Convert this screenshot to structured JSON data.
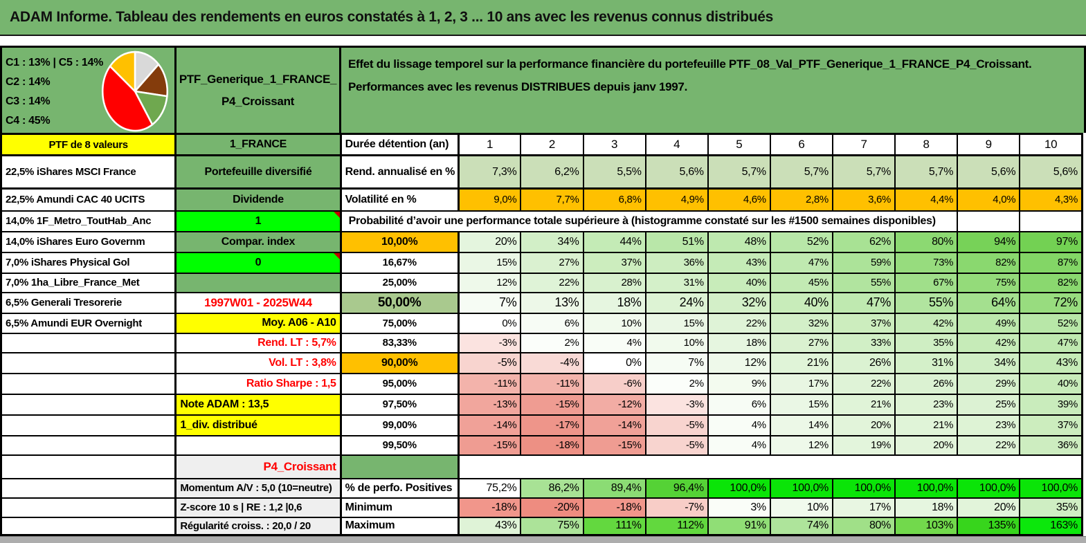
{
  "header": {
    "title": "ADAM Informe. Tableau des rendements en euros constatés à 1, 2, 3 ... 10 ans avec les revenus connus distribués"
  },
  "top": {
    "pie_legend_lines": [
      "C1 : 13% | C5 : 14%",
      "C2 : 14%",
      "C3 : 14%",
      "C4 : 45%"
    ],
    "name_line1": "PTF_Generique_1_FRANCE_",
    "name_line2": "P4_Croissant",
    "description_line1": "Effet du lissage temporel sur la performance financière du portefeuille PTF_08_Val_PTF_Generique_1_FRANCE_P4_Croissant.",
    "description_line2": "Performances avec les revenus DISTRIBUES depuis janv 1997."
  },
  "chart_data": {
    "type": "pie",
    "segments": [
      {
        "label": "C1",
        "value": 13,
        "color": "#D9D9D9"
      },
      {
        "label": "C2",
        "value": 14,
        "color": "#843C0C"
      },
      {
        "label": "C3",
        "value": 14,
        "color": "#6FA84F"
      },
      {
        "label": "C4",
        "value": 45,
        "color": "#FF0000"
      },
      {
        "label": "C5",
        "value": 14,
        "color": "#FFC000"
      }
    ]
  },
  "colors": {
    "band_green": "#77B56F",
    "olive_green": "#A9C98E",
    "orange": "#FFC000",
    "yellow": "#FFFF00",
    "bright_green": "#00FF00",
    "red_text": "#FF0000",
    "gray_cell": "#EFEFEF"
  },
  "grid": {
    "years": [
      "1",
      "2",
      "3",
      "4",
      "5",
      "6",
      "7",
      "8",
      "9",
      "10"
    ],
    "rows": [
      {
        "key": "header",
        "a": {
          "t": "PTF de 8 valeurs",
          "bg": "#FFFF00",
          "align": "center"
        },
        "b": {
          "t": "1_FRANCE",
          "bg": "#77B56F"
        },
        "c": {
          "t": "Durée détention (an)",
          "align": "left",
          "size": 16
        },
        "vals": [
          "1",
          "2",
          "3",
          "4",
          "5",
          "6",
          "7",
          "8",
          "9",
          "10"
        ],
        "vbg": [
          "#FFFFFF",
          "#FFFFFF",
          "#FFFFFF",
          "#FFFFFF",
          "#FFFFFF",
          "#FFFFFF",
          "#FFFFFF",
          "#FFFFFF",
          "#FFFFFF",
          "#FFFFFF"
        ],
        "vbold": true,
        "vsize": 17,
        "valign": "center"
      },
      {
        "key": "rend",
        "a": {
          "t": "22,5% iShares MSCI France"
        },
        "b": {
          "t": "Portefeuille diversifié",
          "bg": "#77B56F"
        },
        "c": {
          "t": "Rend. annualisé en %",
          "align": "left",
          "size": 16
        },
        "vals": [
          "7,3%",
          "6,2%",
          "5,5%",
          "5,6%",
          "5,7%",
          "5,7%",
          "5,7%",
          "5,7%",
          "5,6%",
          "5,6%"
        ],
        "vbg": [
          "#CBDFB8",
          "#CBDFB8",
          "#CBDFB8",
          "#CBDFB8",
          "#CBDFB8",
          "#CBDFB8",
          "#CBDFB8",
          "#CBDFB8",
          "#CBDFB8",
          "#CBDFB8"
        ],
        "vbold": true,
        "vsize": 16
      },
      {
        "key": "vol",
        "a": {
          "t": "22,5% Amundi CAC 40 UCITS"
        },
        "b": {
          "t": "Dividende",
          "bg": "#77B56F"
        },
        "c": {
          "t": "Volatilité en %",
          "align": "left",
          "size": 16
        },
        "vals": [
          "9,0%",
          "7,7%",
          "6,8%",
          "4,9%",
          "4,6%",
          "2,8%",
          "3,6%",
          "4,4%",
          "4,0%",
          "4,3%"
        ],
        "vbg": [
          "#FFC000",
          "#FFC000",
          "#FFC000",
          "#FFC000",
          "#FFC000",
          "#FFC000",
          "#FFC000",
          "#FFC000",
          "#FFC000",
          "#FFC000"
        ],
        "vbold": false,
        "vsize": 15
      },
      {
        "key": "proba",
        "type": "proba",
        "a": {
          "t": "14,0% 1F_Metro_ToutHab_Anc"
        },
        "b": {
          "t": "1",
          "bg": "#00FF00",
          "marker": true
        },
        "banner": {
          "t": "Probabilité d’avoir une performance totale supérieure à (histogramme constaté sur les #1500 semaines disponibles)"
        }
      },
      {
        "key": "p10",
        "a": {
          "t": "14,0% iShares Euro Governm"
        },
        "b": {
          "t": "Compar. index",
          "bg": "#77B56F"
        },
        "c": {
          "t": "10,00%",
          "bg": "#FFC000",
          "size": 16
        },
        "vals": [
          "20%",
          "34%",
          "44%",
          "51%",
          "48%",
          "52%",
          "62%",
          "80%",
          "94%",
          "97%"
        ],
        "vbg": [
          "#E4F5DE",
          "#D2EFC7",
          "#C4EBB6",
          "#B9E7A9",
          "#BEE9AF",
          "#B8E7A8",
          "#A8E294",
          "#8CD972",
          "#77D258",
          "#73D153"
        ],
        "vbold": true,
        "vsize": 16
      },
      {
        "key": "p16",
        "a": {
          "t": "7,0% iShares Physical Gol"
        },
        "b": {
          "t": "0",
          "bg": "#00FF00",
          "marker": true
        },
        "c": {
          "t": "16,67%"
        },
        "vals": [
          "15%",
          "27%",
          "37%",
          "36%",
          "43%",
          "47%",
          "59%",
          "73%",
          "82%",
          "87%"
        ],
        "vbg": [
          "#EAF7E5",
          "#DAF1D0",
          "#CCEDBE",
          "#CDEDC0",
          "#C5EBB7",
          "#BFE9B0",
          "#ACE399",
          "#97DC7E",
          "#8AD86F",
          "#83D666"
        ],
        "vbold": false,
        "vsize": 15
      },
      {
        "key": "p25",
        "a": {
          "t": "7,0% 1ha_Libre_France_Met"
        },
        "b": {
          "t": "",
          "bg": "#77B56F"
        },
        "c": {
          "t": "25,00%"
        },
        "vals": [
          "12%",
          "22%",
          "28%",
          "31%",
          "40%",
          "45%",
          "55%",
          "67%",
          "75%",
          "82%"
        ],
        "vbg": [
          "#EEF9EA",
          "#DFF3D7",
          "#D8F1CE",
          "#D4F0C9",
          "#C8ECBA",
          "#C2EAB3",
          "#B1E49F",
          "#A0DF8A",
          "#94DB7A",
          "#8AD86F"
        ],
        "vbold": false,
        "vsize": 15
      },
      {
        "key": "p50",
        "a": {
          "t": "6,5% Generali Tresorerie"
        },
        "b": {
          "t": "1997W01 - 2025W44",
          "fg": "#FF0000",
          "size": 17
        },
        "c": {
          "t": "50,00%",
          "bg": "#A9C98E",
          "size": 19
        },
        "vals": [
          "7%",
          "13%",
          "18%",
          "24%",
          "32%",
          "40%",
          "47%",
          "55%",
          "64%",
          "72%"
        ],
        "vbg": [
          "#F6FCF4",
          "#EDF8E8",
          "#E6F6E0",
          "#DDF3D4",
          "#D3EFC8",
          "#C8ECBA",
          "#BFE9B0",
          "#B1E49F",
          "#A4E08F",
          "#98DC7F"
        ],
        "vbold": true,
        "vsize": 18
      },
      {
        "key": "p75",
        "a": {
          "t": "6,5% Amundi EUR Overnight"
        },
        "b": {
          "t": "Moy. A06 - A10",
          "bg": "#FFFF00",
          "align": "right"
        },
        "c": {
          "t": "75,00%"
        },
        "vals": [
          "0%",
          "6%",
          "10%",
          "15%",
          "22%",
          "32%",
          "37%",
          "42%",
          "49%",
          "52%"
        ],
        "vbg": [
          "#FFFFFF",
          "#F7FCF5",
          "#F1FAED",
          "#EAF7E5",
          "#DFF3D7",
          "#D3EFC8",
          "#CCEDBE",
          "#C6EBB8",
          "#BCE8AC",
          "#B8E7A8"
        ],
        "vbold": false,
        "vsize": 15
      },
      {
        "key": "p83",
        "a": {
          "t": ""
        },
        "b": {
          "t": "Rend. LT : 5,7%",
          "fg": "#FF0000",
          "align": "right"
        },
        "c": {
          "t": "83,33%"
        },
        "vals": [
          "-3%",
          "2%",
          "4%",
          "10%",
          "18%",
          "27%",
          "33%",
          "35%",
          "42%",
          "47%"
        ],
        "vbg": [
          "#FBE3E0",
          "#FBFEFA",
          "#F9FDF7",
          "#F1FAED",
          "#E6F6E0",
          "#DAF1D0",
          "#D1EFC6",
          "#CFEEC3",
          "#C6EBB8",
          "#BFE9B0"
        ],
        "vbold": false,
        "vsize": 15
      },
      {
        "key": "p90",
        "a": {
          "t": ""
        },
        "b": {
          "t": "Vol. LT : 3,8%",
          "fg": "#FF0000",
          "align": "right"
        },
        "c": {
          "t": "90,00%",
          "bg": "#FFC000",
          "size": 16
        },
        "vals": [
          "-5%",
          "-4%",
          "0%",
          "7%",
          "12%",
          "21%",
          "26%",
          "31%",
          "34%",
          "43%"
        ],
        "vbg": [
          "#F8D4CF",
          "#F9DAD6",
          "#FFFFFF",
          "#F6FCF4",
          "#EEF9EA",
          "#E0F4D8",
          "#DBF2D2",
          "#D4F0C9",
          "#D0EEC5",
          "#C5EBB7"
        ],
        "vbold": true,
        "vsize": 16
      },
      {
        "key": "p95",
        "a": {
          "t": ""
        },
        "b": {
          "t": "Ratio Sharpe : 1,5",
          "fg": "#FF0000",
          "align": "right"
        },
        "c": {
          "t": "95,00%"
        },
        "vals": [
          "-11%",
          "-11%",
          "-6%",
          "2%",
          "9%",
          "17%",
          "22%",
          "26%",
          "29%",
          "40%"
        ],
        "vbg": [
          "#F3B3AB",
          "#F3B3AB",
          "#F7CEC9",
          "#FBFEFA",
          "#F3FBEF",
          "#E8F6E2",
          "#DFF3D7",
          "#DBF2D2",
          "#D6F0CC",
          "#C8ECBA"
        ],
        "vbold": false,
        "vsize": 15
      },
      {
        "key": "p975",
        "a": {
          "t": ""
        },
        "b": {
          "t": "Note ADAM : 13,5",
          "bg": "#FFFF00",
          "align": "left"
        },
        "c": {
          "t": "97,50%"
        },
        "vals": [
          "-13%",
          "-15%",
          "-12%",
          "-3%",
          "6%",
          "15%",
          "21%",
          "23%",
          "25%",
          "39%"
        ],
        "vbg": [
          "#F1A69D",
          "#EF9C92",
          "#F2ACA4",
          "#FBE3E0",
          "#F7FCF5",
          "#EAF7E5",
          "#E0F4D8",
          "#DEF3D5",
          "#DCF2D3",
          "#C9ECBC"
        ],
        "vbold": false,
        "vsize": 15
      },
      {
        "key": "p99",
        "a": {
          "t": ""
        },
        "b": {
          "t": "1_div. distribué",
          "bg": "#FFFF00",
          "align": "left"
        },
        "c": {
          "t": "99,00%"
        },
        "vals": [
          "-14%",
          "-17%",
          "-14%",
          "-5%",
          "4%",
          "14%",
          "20%",
          "21%",
          "23%",
          "37%"
        ],
        "vbg": [
          "#F0A198",
          "#EE958A",
          "#F0A198",
          "#F8D4CF",
          "#F9FDF7",
          "#ECF8E7",
          "#E2F4DA",
          "#E0F4D8",
          "#DEF3D5",
          "#CCEDBE"
        ],
        "vbold": false,
        "vsize": 15
      },
      {
        "key": "p995",
        "a": {
          "t": ""
        },
        "b": {
          "t": ""
        },
        "c": {
          "t": "99,50%"
        },
        "vals": [
          "-15%",
          "-18%",
          "-15%",
          "-5%",
          "4%",
          "12%",
          "19%",
          "20%",
          "22%",
          "36%"
        ],
        "vbg": [
          "#EF9C92",
          "#ED9084",
          "#EF9C92",
          "#F8D4CF",
          "#F9FDF7",
          "#EEF9EA",
          "#E3F5DC",
          "#E2F4DA",
          "#DFF3D7",
          "#CDEDC0"
        ],
        "vbold": false,
        "vsize": 15
      },
      {
        "key": "p4",
        "type": "p4",
        "a": {
          "t": ""
        },
        "b": {
          "t": "P4_Croissant",
          "bg": "#EFEFEF",
          "fg": "#FF0000",
          "align": "right",
          "size": 17
        },
        "c": {
          "t": "",
          "bg": "#77B56F"
        }
      },
      {
        "key": "perf",
        "a": {
          "t": ""
        },
        "b": {
          "t": "Momentum A/V : 5,0 (10=neutre)",
          "bg": "#EFEFEF",
          "align": "left",
          "size": 15
        },
        "c": {
          "t": "% de perfo. Positives",
          "align": "left",
          "size": 16
        },
        "vals": [
          "75,2%",
          "86,2%",
          "89,4%",
          "96,4%",
          "100,0%",
          "100,0%",
          "100,0%",
          "100,0%",
          "100,0%",
          "100,0%"
        ],
        "vbg": [
          "#FFFFFF",
          "#A8E295",
          "#8BDC74",
          "#55D236",
          "#0BE408",
          "#0BE408",
          "#0BE408",
          "#0BE408",
          "#0BE408",
          "#0BE408"
        ],
        "vbold": true,
        "vsize": 16
      },
      {
        "key": "min",
        "a": {
          "t": ""
        },
        "b": {
          "t": "Z-score 10 s | RE : 1,2 |0,6",
          "bg": "#EFEFEF",
          "align": "left",
          "size": 15
        },
        "c": {
          "t": "Minimum",
          "align": "left",
          "size": 16
        },
        "vals": [
          "-18%",
          "-20%",
          "-18%",
          "-7%",
          "3%",
          "10%",
          "17%",
          "18%",
          "20%",
          "35%"
        ],
        "vbg": [
          "#F1968B",
          "#EE8C80",
          "#F1968B",
          "#F8CDC7",
          "#FAFDF8",
          "#F1FAED",
          "#E8F6E2",
          "#E6F6E0",
          "#E2F4DA",
          "#CFEEC3"
        ],
        "vbold": true,
        "vsize": 16
      },
      {
        "key": "max",
        "a": {
          "t": ""
        },
        "b": {
          "t": "Régularité croiss. : 20,0 / 20",
          "bg": "#EFEFEF",
          "align": "left",
          "size": 15
        },
        "c": {
          "t": "Maximum",
          "align": "left",
          "size": 16
        },
        "vals": [
          "43%",
          "75%",
          "111%",
          "112%",
          "91%",
          "74%",
          "80%",
          "103%",
          "135%",
          "163%"
        ],
        "vbg": [
          "#DFF3D7",
          "#ACE399",
          "#63D83F",
          "#62D83E",
          "#90DE76",
          "#AEE49B",
          "#A0E088",
          "#72D94C",
          "#37D51C",
          "#0CE70C"
        ],
        "vbold": true,
        "vsize": 16
      }
    ]
  }
}
